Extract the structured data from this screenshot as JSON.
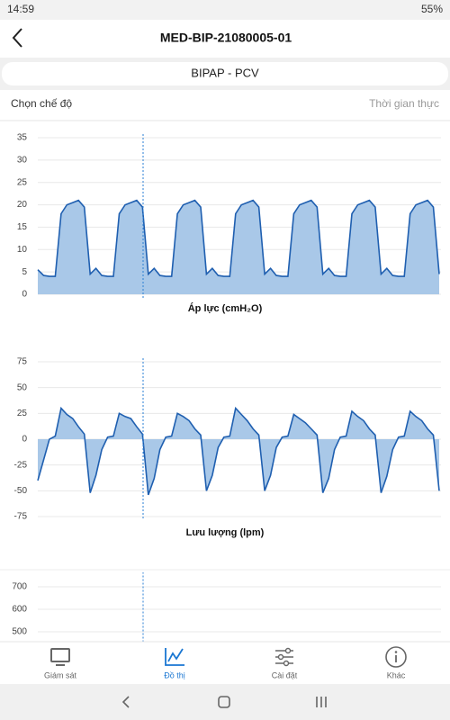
{
  "status": {
    "time": "14:59",
    "battery": "55%"
  },
  "header": {
    "title": "MED-BIP-21080005-01"
  },
  "mode": "BIPAP - PCV",
  "row": {
    "left": "Chọn chế độ",
    "right": "Thời gian thực"
  },
  "chart_data": [
    {
      "type": "area",
      "x_label": "Áp lực (cmH₂O)",
      "color": "#1f5fb0",
      "fill": "#a9c8e8",
      "ylim": [
        0,
        35
      ],
      "yticks": [
        0,
        5,
        10,
        15,
        20,
        25,
        30,
        35
      ],
      "grid": true,
      "values": [
        5.5,
        4.2,
        4,
        4,
        18,
        20,
        20.5,
        21,
        19.5,
        4.5,
        5.8,
        4.2,
        4,
        4,
        18,
        20,
        20.5,
        21,
        19.5,
        4.5,
        5.8,
        4.2,
        4,
        4,
        18,
        20,
        20.5,
        21,
        19.5,
        4.5,
        5.8,
        4.2,
        4,
        4,
        18,
        20,
        20.5,
        21,
        19.5,
        4.5,
        5.8,
        4.2,
        4,
        4,
        18,
        20,
        20.5,
        21,
        19.5,
        4.5,
        5.8,
        4.2,
        4,
        4,
        18,
        20,
        20.5,
        21,
        19.5,
        4.5,
        5.8,
        4.2,
        4,
        4,
        18,
        20,
        20.5,
        21,
        19.5,
        4.5
      ]
    },
    {
      "type": "area",
      "x_label": "Lưu lượng (lpm)",
      "color": "#1f5fb0",
      "fill": "#a9c8e8",
      "ylim": [
        -75,
        75
      ],
      "yticks": [
        -75,
        -50,
        -25,
        0,
        25,
        50,
        75
      ],
      "grid": true,
      "values": [
        -40,
        -20,
        0,
        3,
        30,
        24,
        20,
        12,
        5,
        -52,
        -35,
        -10,
        2,
        3,
        25,
        22,
        20,
        12,
        5,
        -54,
        -38,
        -10,
        2,
        3,
        25,
        22,
        18,
        10,
        4,
        -50,
        -35,
        -8,
        2,
        3,
        30,
        24,
        18,
        10,
        4,
        -50,
        -35,
        -8,
        2,
        3,
        24,
        20,
        16,
        10,
        4,
        -52,
        -38,
        -10,
        2,
        3,
        27,
        22,
        18,
        10,
        4,
        -52,
        -36,
        -10,
        2,
        3,
        27,
        22,
        18,
        10,
        4,
        -50
      ]
    },
    {
      "type": "area",
      "color": "#1f5fb0",
      "fill": "#a9c8e8",
      "ylim": [
        0,
        750
      ],
      "yticks": [
        500,
        600,
        700
      ],
      "grid": true,
      "values": []
    }
  ],
  "nav": [
    {
      "label": "Giám sát"
    },
    {
      "label": "Đồ thị",
      "active": true
    },
    {
      "label": "Cài đặt"
    },
    {
      "label": "Khác"
    }
  ]
}
